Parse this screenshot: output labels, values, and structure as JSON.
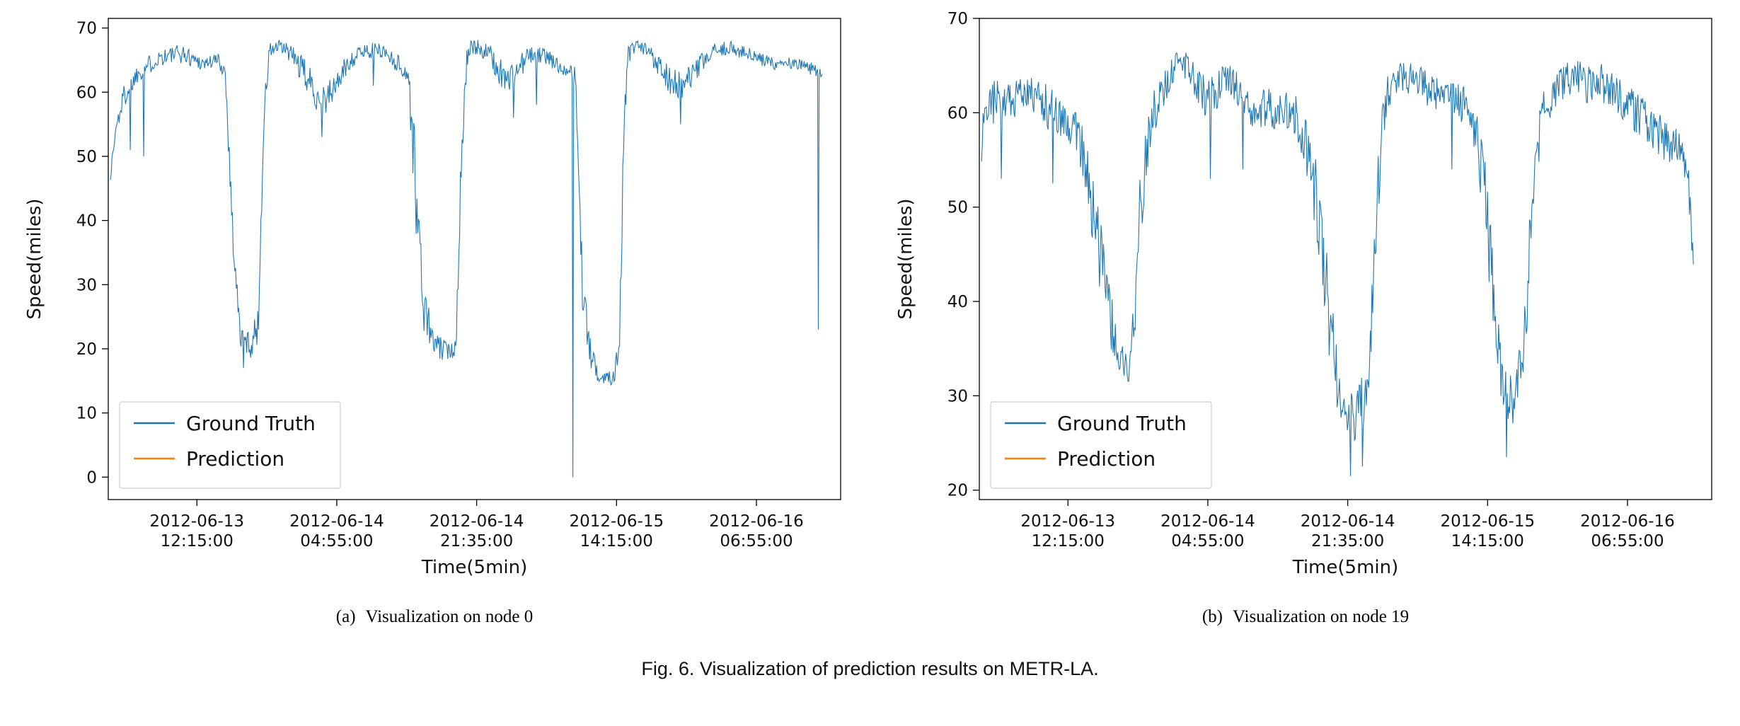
{
  "figure": {
    "caption": "Fig. 6. Visualization of prediction results on METR-LA.",
    "accent_colors": {
      "ground_truth": "#1f77b4",
      "prediction": "#ff7f0e"
    }
  },
  "chart_data": [
    {
      "type": "line",
      "caption_prefix": "(a)",
      "caption_text": "Visualization on node 0",
      "xlabel": "Time(5min)",
      "ylabel": "Speed(miles)",
      "ylim": [
        0,
        70
      ],
      "ylim_render": [
        -3.5,
        71.5
      ],
      "yticks": [
        0,
        10,
        20,
        30,
        40,
        50,
        60,
        70
      ],
      "grid": false,
      "legend_position": "lower left",
      "xticks": [
        {
          "pos": 0.121,
          "date": "2012-06-13",
          "time": "12:15:00"
        },
        {
          "pos": 0.312,
          "date": "2012-06-14",
          "time": "04:55:00"
        },
        {
          "pos": 0.503,
          "date": "2012-06-14",
          "time": "21:35:00"
        },
        {
          "pos": 0.694,
          "date": "2012-06-15",
          "time": "14:15:00"
        },
        {
          "pos": 0.885,
          "date": "2012-06-16",
          "time": "06:55:00"
        }
      ],
      "legend": [
        {
          "label": "Ground Truth",
          "color": "#1f77b4"
        },
        {
          "label": "Prediction",
          "color": "#ff7f0e"
        }
      ],
      "series": [
        {
          "name": "Ground Truth",
          "color": "#1f77b4",
          "style": "noisy"
        },
        {
          "name": "Prediction",
          "color": "#ff7f0e",
          "style": "smooth"
        }
      ],
      "n_samples": 900,
      "x_data_range": [
        0.003,
        0.975
      ],
      "base_curve_keypoints": [
        [
          0.003,
          47,
          1.0
        ],
        [
          0.01,
          54,
          2.0
        ],
        [
          0.02,
          59,
          2.0
        ],
        [
          0.04,
          63,
          1.5
        ],
        [
          0.07,
          65.5,
          1.5
        ],
        [
          0.1,
          66,
          1.5
        ],
        [
          0.13,
          64.5,
          1.2
        ],
        [
          0.15,
          65,
          1.2
        ],
        [
          0.16,
          63,
          1.5
        ],
        [
          0.17,
          38,
          3.0
        ],
        [
          0.18,
          22,
          2.0
        ],
        [
          0.195,
          20.5,
          2.0
        ],
        [
          0.205,
          24,
          3.0
        ],
        [
          0.212,
          55,
          3.0
        ],
        [
          0.22,
          66.5,
          1.5
        ],
        [
          0.235,
          67,
          1.2
        ],
        [
          0.25,
          66,
          1.5
        ],
        [
          0.27,
          62.5,
          2.5
        ],
        [
          0.285,
          59.5,
          2.5
        ],
        [
          0.3,
          59,
          2.5
        ],
        [
          0.315,
          62,
          2.0
        ],
        [
          0.33,
          65,
          1.5
        ],
        [
          0.35,
          66.5,
          1.2
        ],
        [
          0.375,
          66.5,
          1.2
        ],
        [
          0.395,
          64.5,
          1.5
        ],
        [
          0.41,
          62.5,
          2.0
        ],
        [
          0.42,
          45,
          8.0
        ],
        [
          0.43,
          27,
          4.0
        ],
        [
          0.445,
          20.5,
          2.0
        ],
        [
          0.465,
          19.5,
          1.5
        ],
        [
          0.475,
          21,
          2.0
        ],
        [
          0.482,
          50,
          4.0
        ],
        [
          0.49,
          66,
          2.0
        ],
        [
          0.505,
          67,
          1.2
        ],
        [
          0.52,
          66,
          1.5
        ],
        [
          0.535,
          63,
          2.5
        ],
        [
          0.55,
          62,
          2.5
        ],
        [
          0.565,
          64.5,
          2.0
        ],
        [
          0.58,
          66,
          1.5
        ],
        [
          0.6,
          65.5,
          1.2
        ],
        [
          0.615,
          64,
          1.2
        ],
        [
          0.63,
          63.5,
          1.0
        ],
        [
          0.638,
          62,
          2.0
        ],
        [
          0.648,
          28,
          4.0
        ],
        [
          0.66,
          18,
          2.0
        ],
        [
          0.675,
          15.5,
          1.5
        ],
        [
          0.69,
          16,
          1.5
        ],
        [
          0.698,
          20,
          3.0
        ],
        [
          0.703,
          50,
          5.0
        ],
        [
          0.71,
          66,
          2.0
        ],
        [
          0.725,
          67,
          1.2
        ],
        [
          0.74,
          66,
          1.5
        ],
        [
          0.755,
          64,
          2.0
        ],
        [
          0.77,
          61.5,
          2.5
        ],
        [
          0.785,
          60.5,
          2.5
        ],
        [
          0.8,
          63,
          2.0
        ],
        [
          0.815,
          65,
          1.5
        ],
        [
          0.83,
          66.5,
          1.2
        ],
        [
          0.85,
          67,
          1.0
        ],
        [
          0.87,
          66,
          1.2
        ],
        [
          0.89,
          65,
          1.2
        ],
        [
          0.91,
          64.5,
          1.0
        ],
        [
          0.93,
          64.5,
          1.0
        ],
        [
          0.95,
          64,
          1.0
        ],
        [
          0.965,
          63.5,
          1.0
        ],
        [
          0.975,
          63,
          1.0
        ]
      ],
      "gt_spikes": [
        [
          0.03,
          51
        ],
        [
          0.048,
          50
        ],
        [
          0.185,
          17
        ],
        [
          0.292,
          53
        ],
        [
          0.362,
          61
        ],
        [
          0.553,
          56
        ],
        [
          0.585,
          58
        ],
        [
          0.634,
          0
        ],
        [
          0.782,
          55
        ],
        [
          0.97,
          23
        ]
      ]
    },
    {
      "type": "line",
      "caption_prefix": "(b)",
      "caption_text": "Visualization on node 19",
      "xlabel": "Time(5min)",
      "ylabel": "Speed(miles)",
      "ylim": [
        20,
        70
      ],
      "ylim_render": [
        19,
        70
      ],
      "yticks": [
        20,
        30,
        40,
        50,
        60,
        70
      ],
      "grid": false,
      "legend_position": "lower left",
      "xticks": [
        {
          "pos": 0.121,
          "date": "2012-06-13",
          "time": "12:15:00"
        },
        {
          "pos": 0.312,
          "date": "2012-06-14",
          "time": "04:55:00"
        },
        {
          "pos": 0.503,
          "date": "2012-06-14",
          "time": "21:35:00"
        },
        {
          "pos": 0.694,
          "date": "2012-06-15",
          "time": "14:15:00"
        },
        {
          "pos": 0.885,
          "date": "2012-06-16",
          "time": "06:55:00"
        }
      ],
      "legend": [
        {
          "label": "Ground Truth",
          "color": "#1f77b4"
        },
        {
          "label": "Prediction",
          "color": "#ff7f0e"
        }
      ],
      "series": [
        {
          "name": "Ground Truth",
          "color": "#1f77b4",
          "style": "noisy"
        },
        {
          "name": "Prediction",
          "color": "#ff7f0e",
          "style": "smooth"
        }
      ],
      "n_samples": 900,
      "x_data_range": [
        0.003,
        0.975
      ],
      "base_curve_keypoints": [
        [
          0.003,
          57,
          3.0
        ],
        [
          0.02,
          61.5,
          2.5
        ],
        [
          0.04,
          61,
          2.5
        ],
        [
          0.06,
          62,
          2.0
        ],
        [
          0.08,
          62,
          2.0
        ],
        [
          0.095,
          60.5,
          2.5
        ],
        [
          0.11,
          59.5,
          2.2
        ],
        [
          0.13,
          58.5,
          2.2
        ],
        [
          0.145,
          55,
          3.0
        ],
        [
          0.16,
          47,
          4.0
        ],
        [
          0.175,
          40,
          4.0
        ],
        [
          0.19,
          34,
          2.5
        ],
        [
          0.2,
          32.5,
          2.0
        ],
        [
          0.21,
          37,
          4.0
        ],
        [
          0.22,
          50,
          4.0
        ],
        [
          0.235,
          59,
          3.0
        ],
        [
          0.25,
          62,
          2.0
        ],
        [
          0.265,
          64.5,
          1.8
        ],
        [
          0.28,
          65,
          1.5
        ],
        [
          0.295,
          63.5,
          2.0
        ],
        [
          0.31,
          61.5,
          2.5
        ],
        [
          0.325,
          62.5,
          2.0
        ],
        [
          0.34,
          63.5,
          1.8
        ],
        [
          0.355,
          62.5,
          2.0
        ],
        [
          0.37,
          61,
          2.5
        ],
        [
          0.39,
          60,
          2.5
        ],
        [
          0.41,
          60.5,
          2.2
        ],
        [
          0.43,
          60,
          2.2
        ],
        [
          0.445,
          57.5,
          3.0
        ],
        [
          0.46,
          50,
          5.0
        ],
        [
          0.475,
          40,
          5.0
        ],
        [
          0.49,
          31,
          3.0
        ],
        [
          0.505,
          27.5,
          2.5
        ],
        [
          0.52,
          28.5,
          3.0
        ],
        [
          0.532,
          31,
          3.0
        ],
        [
          0.54,
          45,
          5.0
        ],
        [
          0.55,
          60,
          3.0
        ],
        [
          0.562,
          63,
          2.0
        ],
        [
          0.578,
          64,
          1.8
        ],
        [
          0.595,
          63.5,
          1.8
        ],
        [
          0.61,
          62.5,
          2.0
        ],
        [
          0.625,
          62,
          2.0
        ],
        [
          0.64,
          62.5,
          2.0
        ],
        [
          0.655,
          61.5,
          2.0
        ],
        [
          0.668,
          60,
          2.5
        ],
        [
          0.68,
          57,
          3.0
        ],
        [
          0.695,
          48,
          5.0
        ],
        [
          0.705,
          37,
          4.0
        ],
        [
          0.715,
          30.5,
          2.5
        ],
        [
          0.728,
          29.5,
          2.5
        ],
        [
          0.74,
          32,
          4.0
        ],
        [
          0.75,
          43,
          5.0
        ],
        [
          0.76,
          55,
          3.0
        ],
        [
          0.77,
          60,
          2.5
        ],
        [
          0.785,
          62,
          2.0
        ],
        [
          0.8,
          63.5,
          1.8
        ],
        [
          0.815,
          64,
          1.8
        ],
        [
          0.83,
          63,
          2.0
        ],
        [
          0.845,
          63.5,
          2.0
        ],
        [
          0.86,
          62.5,
          2.0
        ],
        [
          0.875,
          61.5,
          2.2
        ],
        [
          0.89,
          60.5,
          2.2
        ],
        [
          0.905,
          59.5,
          2.5
        ],
        [
          0.92,
          58.5,
          2.5
        ],
        [
          0.935,
          57.5,
          2.5
        ],
        [
          0.948,
          57,
          2.5
        ],
        [
          0.96,
          55.5,
          2.5
        ],
        [
          0.97,
          51,
          3.0
        ],
        [
          0.975,
          44,
          1.0
        ]
      ],
      "gt_spikes": [
        [
          0.03,
          53
        ],
        [
          0.1,
          52.5
        ],
        [
          0.315,
          53
        ],
        [
          0.36,
          54
        ],
        [
          0.507,
          21.5
        ],
        [
          0.523,
          22.5
        ],
        [
          0.645,
          54
        ],
        [
          0.72,
          23.5
        ]
      ]
    }
  ]
}
